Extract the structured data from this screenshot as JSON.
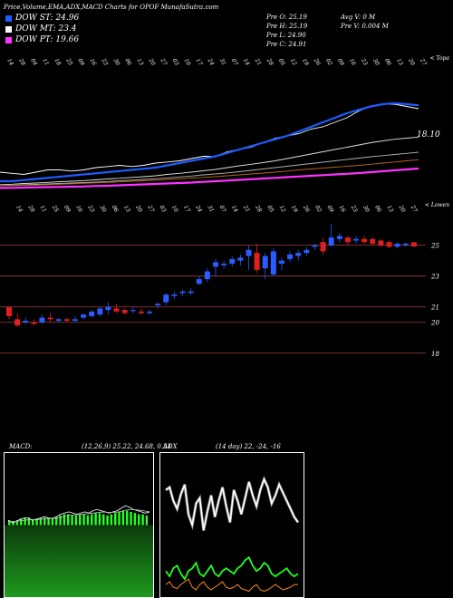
{
  "header": {
    "title": "Price,Volume,EMA,ADX,MACD Charts for OPOF MunafaSutra.com"
  },
  "legend": [
    {
      "label": "DOW ST: 24.96",
      "color": "#1e5cff"
    },
    {
      "label": "DOW MT: 23.4",
      "color": "#ffffff"
    },
    {
      "label": "DOW PT: 19.66",
      "color": "#ff33ff"
    }
  ],
  "stats": {
    "col1": [
      "Pre  O: 25.19",
      "Pre  H: 25.19",
      "Pre  L: 24.90",
      "Pre  C: 24.91"
    ],
    "col2": [
      "Avg V: 0  M",
      "Pre  V: 0.004  M"
    ]
  },
  "chart_data": [
    {
      "type": "line",
      "panel": "ema",
      "corner_label": "< Topa",
      "value_label": "18.10",
      "date_labels": [
        "14",
        "28",
        "04",
        "11",
        "18",
        "25",
        "09",
        "16",
        "23",
        "30",
        "06",
        "13",
        "20",
        "27",
        "03",
        "10",
        "17",
        "24",
        "31",
        "07",
        "14",
        "21",
        "28",
        "05",
        "12",
        "19",
        "26",
        "02",
        "09",
        "16",
        "23",
        "30",
        "06",
        "13",
        "20",
        "27"
      ],
      "series": [
        {
          "color": "#ffffff",
          "values": [
            18.6,
            18.55,
            18.5,
            18.6,
            18.7,
            18.7,
            18.65,
            18.7,
            18.8,
            18.85,
            18.9,
            18.85,
            18.9,
            19.0,
            19.05,
            19.1,
            19.2,
            19.3,
            19.3,
            19.5,
            19.6,
            19.7,
            19.9,
            20.1,
            20.2,
            20.3,
            20.5,
            20.6,
            20.8,
            21.0,
            21.3,
            21.5,
            21.6,
            21.6,
            21.5,
            21.4
          ]
        },
        {
          "color": "#1e5cff",
          "values": [
            18.2,
            18.2,
            18.25,
            18.3,
            18.35,
            18.4,
            18.45,
            18.5,
            18.55,
            18.6,
            18.65,
            18.7,
            18.75,
            18.8,
            18.9,
            19.0,
            19.1,
            19.2,
            19.3,
            19.45,
            19.6,
            19.75,
            19.9,
            20.05,
            20.2,
            20.4,
            20.6,
            20.8,
            21.0,
            21.2,
            21.35,
            21.5,
            21.6,
            21.65,
            21.6,
            21.55
          ]
        },
        {
          "color": "#dddddd",
          "values": [
            18.05,
            18.07,
            18.1,
            18.12,
            18.15,
            18.18,
            18.2,
            18.23,
            18.26,
            18.3,
            18.33,
            18.37,
            18.4,
            18.44,
            18.5,
            18.55,
            18.6,
            18.66,
            18.72,
            18.8,
            18.88,
            18.95,
            19.02,
            19.1,
            19.2,
            19.3,
            19.4,
            19.5,
            19.6,
            19.7,
            19.8,
            19.9,
            19.98,
            20.05,
            20.1,
            20.15
          ]
        },
        {
          "color": "#b0b0b0",
          "values": [
            18.0,
            18.02,
            18.04,
            18.06,
            18.08,
            18.1,
            18.12,
            18.14,
            18.16,
            18.19,
            18.22,
            18.25,
            18.28,
            18.31,
            18.35,
            18.39,
            18.43,
            18.48,
            18.52,
            18.57,
            18.62,
            18.68,
            18.74,
            18.8,
            18.86,
            18.92,
            18.98,
            19.04,
            19.1,
            19.16,
            19.22,
            19.28,
            19.33,
            19.38,
            19.43,
            19.48
          ]
        },
        {
          "color": "#b5651d",
          "values": [
            18.0,
            18.01,
            18.02,
            18.03,
            18.05,
            18.07,
            18.09,
            18.11,
            18.13,
            18.15,
            18.17,
            18.2,
            18.22,
            18.25,
            18.28,
            18.31,
            18.34,
            18.37,
            18.4,
            18.44,
            18.48,
            18.52,
            18.56,
            18.6,
            18.65,
            18.7,
            18.74,
            18.78,
            18.82,
            18.86,
            18.9,
            18.95,
            19.0,
            19.05,
            19.1,
            19.15
          ]
        },
        {
          "color": "#ff33ff",
          "values": [
            17.9,
            17.91,
            17.92,
            17.93,
            17.94,
            17.95,
            17.96,
            17.97,
            17.99,
            18.0,
            18.02,
            18.04,
            18.06,
            18.08,
            18.1,
            18.12,
            18.14,
            18.17,
            18.2,
            18.23,
            18.26,
            18.29,
            18.32,
            18.35,
            18.38,
            18.41,
            18.44,
            18.47,
            18.5,
            18.53,
            18.56,
            18.6,
            18.64,
            18.68,
            18.72,
            18.76
          ]
        }
      ],
      "ylim": [
        17.6,
        22.4
      ]
    },
    {
      "type": "candlestick",
      "panel": "price",
      "corner_label": "< Lowen",
      "date_labels": [
        "14",
        "28",
        "11",
        "25",
        "09",
        "16",
        "23",
        "30",
        "06",
        "13",
        "20",
        "27",
        "03",
        "10",
        "17",
        "24",
        "31",
        "07",
        "14",
        "21",
        "28",
        "05",
        "12",
        "19",
        "26",
        "02",
        "09",
        "16",
        "23",
        "30",
        "06",
        "13",
        "20",
        "27"
      ],
      "y_ticks": [
        25,
        23,
        21,
        20,
        18
      ],
      "ylim": [
        17.4,
        26.8
      ],
      "candles": [
        {
          "o": 21.0,
          "h": 21.0,
          "l": 20.2,
          "c": 20.4
        },
        {
          "o": 20.2,
          "h": 20.6,
          "l": 19.7,
          "c": 19.8
        },
        {
          "o": 20.0,
          "h": 20.3,
          "l": 19.9,
          "c": 20.1
        },
        {
          "o": 20.0,
          "h": 20.2,
          "l": 19.8,
          "c": 19.9
        },
        {
          "o": 20.0,
          "h": 20.5,
          "l": 19.9,
          "c": 20.3
        },
        {
          "o": 20.3,
          "h": 20.6,
          "l": 20.0,
          "c": 20.2
        },
        {
          "o": 20.1,
          "h": 20.3,
          "l": 20.0,
          "c": 20.2
        },
        {
          "o": 20.2,
          "h": 20.3,
          "l": 20.0,
          "c": 20.1
        },
        {
          "o": 20.1,
          "h": 20.4,
          "l": 20.0,
          "c": 20.2
        },
        {
          "o": 20.3,
          "h": 20.6,
          "l": 20.2,
          "c": 20.5
        },
        {
          "o": 20.4,
          "h": 20.8,
          "l": 20.3,
          "c": 20.7
        },
        {
          "o": 20.5,
          "h": 21.0,
          "l": 20.4,
          "c": 20.9
        },
        {
          "o": 20.8,
          "h": 21.3,
          "l": 20.5,
          "c": 21.0
        },
        {
          "o": 20.9,
          "h": 21.2,
          "l": 20.6,
          "c": 20.7
        },
        {
          "o": 20.8,
          "h": 20.9,
          "l": 20.5,
          "c": 20.6
        },
        {
          "o": 20.8,
          "h": 21.0,
          "l": 20.6,
          "c": 20.8
        },
        {
          "o": 20.7,
          "h": 20.9,
          "l": 20.5,
          "c": 20.6
        },
        {
          "o": 20.6,
          "h": 20.8,
          "l": 20.5,
          "c": 20.7
        },
        {
          "o": 21.1,
          "h": 21.3,
          "l": 20.9,
          "c": 21.2
        },
        {
          "o": 21.3,
          "h": 21.9,
          "l": 21.1,
          "c": 21.8
        },
        {
          "o": 21.7,
          "h": 22.0,
          "l": 21.5,
          "c": 21.8
        },
        {
          "o": 21.9,
          "h": 22.1,
          "l": 21.7,
          "c": 22.0
        },
        {
          "o": 21.9,
          "h": 22.2,
          "l": 21.8,
          "c": 22.0
        },
        {
          "o": 22.5,
          "h": 23.0,
          "l": 22.4,
          "c": 22.8
        },
        {
          "o": 22.8,
          "h": 23.5,
          "l": 22.6,
          "c": 23.3
        },
        {
          "o": 23.6,
          "h": 24.1,
          "l": 23.0,
          "c": 23.9
        },
        {
          "o": 23.7,
          "h": 24.0,
          "l": 23.5,
          "c": 23.8
        },
        {
          "o": 23.8,
          "h": 24.3,
          "l": 23.6,
          "c": 24.1
        },
        {
          "o": 24.0,
          "h": 24.4,
          "l": 23.7,
          "c": 24.2
        },
        {
          "o": 24.3,
          "h": 25.0,
          "l": 23.4,
          "c": 24.7
        },
        {
          "o": 24.5,
          "h": 25.1,
          "l": 23.2,
          "c": 23.4
        },
        {
          "o": 23.5,
          "h": 24.5,
          "l": 22.8,
          "c": 24.3
        },
        {
          "o": 23.1,
          "h": 24.8,
          "l": 23.0,
          "c": 24.6
        },
        {
          "o": 23.8,
          "h": 24.2,
          "l": 23.4,
          "c": 24.0
        },
        {
          "o": 24.1,
          "h": 24.6,
          "l": 23.9,
          "c": 24.4
        },
        {
          "o": 24.3,
          "h": 24.7,
          "l": 24.0,
          "c": 24.5
        },
        {
          "o": 24.5,
          "h": 24.9,
          "l": 24.3,
          "c": 24.7
        },
        {
          "o": 24.9,
          "h": 25.1,
          "l": 24.7,
          "c": 25.0
        },
        {
          "o": 25.2,
          "h": 25.5,
          "l": 24.4,
          "c": 24.6
        },
        {
          "o": 25.0,
          "h": 26.4,
          "l": 24.9,
          "c": 25.5
        },
        {
          "o": 25.4,
          "h": 25.8,
          "l": 25.2,
          "c": 25.6
        },
        {
          "o": 25.5,
          "h": 25.6,
          "l": 25.0,
          "c": 25.2
        },
        {
          "o": 25.3,
          "h": 25.6,
          "l": 25.1,
          "c": 25.4
        },
        {
          "o": 25.4,
          "h": 25.6,
          "l": 25.1,
          "c": 25.2
        },
        {
          "o": 25.4,
          "h": 25.5,
          "l": 25.0,
          "c": 25.1
        },
        {
          "o": 25.3,
          "h": 25.4,
          "l": 24.9,
          "c": 25.0
        },
        {
          "o": 25.2,
          "h": 25.3,
          "l": 24.8,
          "c": 24.9
        },
        {
          "o": 24.9,
          "h": 25.2,
          "l": 24.8,
          "c": 25.1
        },
        {
          "o": 25.0,
          "h": 25.2,
          "l": 24.9,
          "c": 25.1
        },
        {
          "o": 25.19,
          "h": 25.19,
          "l": 24.9,
          "c": 24.91
        }
      ]
    },
    {
      "type": "line",
      "panel": "macd",
      "title": "MACD:",
      "subtitle": "(12,26,9) 25.22, 24.68, 0.54",
      "ylim": [
        -3,
        3
      ],
      "series": [
        {
          "color": "#ffffff",
          "values": [
            0.2,
            0.1,
            0.15,
            0.25,
            0.3,
            0.3,
            0.2,
            0.25,
            0.3,
            0.35,
            0.3,
            0.28,
            0.35,
            0.45,
            0.5,
            0.55,
            0.5,
            0.45,
            0.5,
            0.55,
            0.5,
            0.6,
            0.65,
            0.6,
            0.55,
            0.5,
            0.55,
            0.6,
            0.7,
            0.8,
            0.75,
            0.65,
            0.6,
            0.55,
            0.5,
            0.54
          ]
        },
        {
          "color": "#bbbbbb",
          "values": [
            0.15,
            0.15,
            0.15,
            0.18,
            0.2,
            0.22,
            0.22,
            0.22,
            0.24,
            0.26,
            0.27,
            0.27,
            0.28,
            0.32,
            0.36,
            0.4,
            0.42,
            0.43,
            0.44,
            0.46,
            0.47,
            0.5,
            0.52,
            0.54,
            0.54,
            0.53,
            0.53,
            0.54,
            0.57,
            0.62,
            0.64,
            0.64,
            0.63,
            0.61,
            0.58,
            0.56
          ]
        }
      ],
      "histogram": [
        0.2,
        0.15,
        0.2,
        0.25,
        0.3,
        0.3,
        0.25,
        0.25,
        0.3,
        0.3,
        0.3,
        0.3,
        0.35,
        0.4,
        0.45,
        0.45,
        0.4,
        0.4,
        0.45,
        0.45,
        0.4,
        0.45,
        0.5,
        0.5,
        0.45,
        0.4,
        0.45,
        0.5,
        0.55,
        0.6,
        0.6,
        0.55,
        0.5,
        0.45,
        0.45,
        0.4
      ]
    },
    {
      "type": "line",
      "panel": "adx",
      "title": "ADX",
      "subtitle": "(14 day) 22, -24, -16",
      "ylim": [
        0,
        100
      ],
      "series": [
        {
          "color": "#ffffff",
          "values": [
            78,
            80,
            70,
            64,
            75,
            82,
            60,
            52,
            68,
            72,
            48,
            62,
            74,
            58,
            70,
            80,
            66,
            54,
            78,
            70,
            60,
            72,
            84,
            74,
            66,
            78,
            86,
            80,
            68,
            74,
            82,
            76,
            70,
            64,
            58,
            54
          ]
        },
        {
          "color": "#22ff22",
          "values": [
            18,
            14,
            20,
            22,
            16,
            12,
            18,
            20,
            24,
            16,
            14,
            18,
            22,
            16,
            14,
            18,
            20,
            18,
            16,
            20,
            22,
            26,
            28,
            22,
            18,
            20,
            24,
            22,
            16,
            14,
            16,
            18,
            20,
            16,
            14,
            16
          ]
        },
        {
          "color": "#ff8c1a",
          "values": [
            8,
            10,
            6,
            5,
            8,
            10,
            12,
            6,
            4,
            8,
            10,
            6,
            4,
            6,
            8,
            10,
            6,
            5,
            6,
            8,
            5,
            4,
            3,
            6,
            8,
            4,
            3,
            4,
            6,
            8,
            6,
            4,
            5,
            6,
            8,
            8
          ]
        }
      ]
    }
  ]
}
